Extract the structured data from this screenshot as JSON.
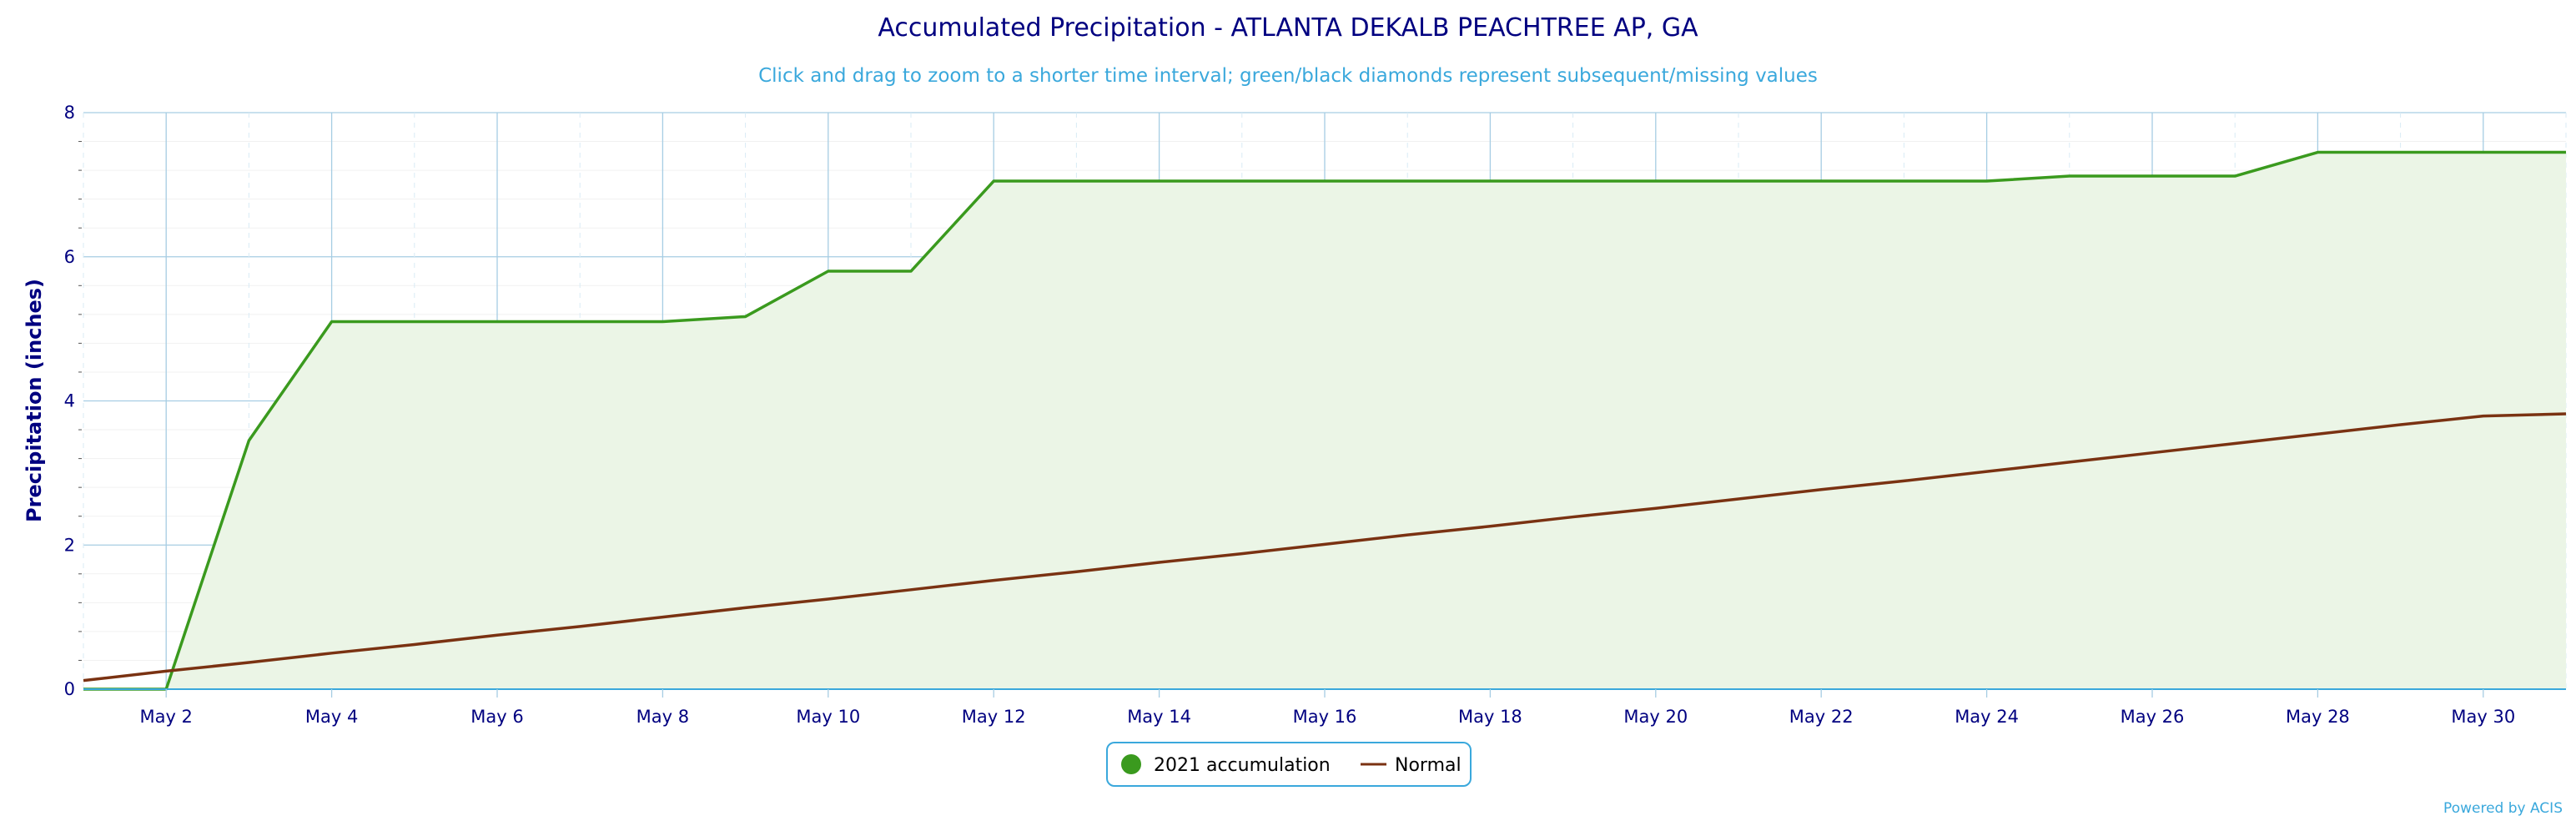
{
  "chart_data": {
    "type": "line",
    "title": "Accumulated Precipitation - ATLANTA DEKALB PEACHTREE AP, GA",
    "subtitle": "Click and drag to zoom to a shorter time interval; green/black diamonds represent subsequent/missing values",
    "ylabel": "Precipitation (inches)",
    "xlabel": "",
    "ylim": [
      0,
      8
    ],
    "xlim": [
      1,
      31
    ],
    "y_ticks": [
      0,
      2,
      4,
      6,
      8
    ],
    "x_ticks": [
      {
        "day": 2,
        "label": "May 2"
      },
      {
        "day": 4,
        "label": "May 4"
      },
      {
        "day": 6,
        "label": "May 6"
      },
      {
        "day": 8,
        "label": "May 8"
      },
      {
        "day": 10,
        "label": "May 10"
      },
      {
        "day": 12,
        "label": "May 12"
      },
      {
        "day": 14,
        "label": "May 14"
      },
      {
        "day": 16,
        "label": "May 16"
      },
      {
        "day": 18,
        "label": "May 18"
      },
      {
        "day": 20,
        "label": "May 20"
      },
      {
        "day": 22,
        "label": "May 22"
      },
      {
        "day": 24,
        "label": "May 24"
      },
      {
        "day": 26,
        "label": "May 26"
      },
      {
        "day": 28,
        "label": "May 28"
      },
      {
        "day": 30,
        "label": "May 30"
      }
    ],
    "grid": true,
    "legend_position": "bottom-center",
    "series": [
      {
        "name": "2021 accumulation",
        "color": "#3a9a1e",
        "fill": "#ebf5e6",
        "x": [
          1,
          2,
          3,
          4,
          5,
          6,
          7,
          8,
          9,
          10,
          11,
          12,
          13,
          14,
          15,
          16,
          17,
          18,
          19,
          20,
          21,
          22,
          23,
          24,
          25,
          26,
          27,
          28,
          29,
          30,
          31
        ],
        "values": [
          0.0,
          0.0,
          3.45,
          5.1,
          5.1,
          5.1,
          5.1,
          5.1,
          5.17,
          5.8,
          5.8,
          7.05,
          7.05,
          7.05,
          7.05,
          7.05,
          7.05,
          7.05,
          7.05,
          7.05,
          7.05,
          7.05,
          7.05,
          7.05,
          7.12,
          7.12,
          7.12,
          7.45,
          7.45,
          7.45,
          7.45
        ]
      },
      {
        "name": "Normal",
        "color": "#7a3212",
        "x": [
          1,
          2,
          3,
          4,
          5,
          6,
          7,
          8,
          9,
          10,
          11,
          12,
          13,
          14,
          15,
          16,
          17,
          18,
          19,
          20,
          21,
          22,
          23,
          24,
          25,
          26,
          27,
          28,
          29,
          30,
          31
        ],
        "values": [
          0.12,
          0.25,
          0.37,
          0.5,
          0.62,
          0.75,
          0.87,
          1.0,
          1.13,
          1.25,
          1.38,
          1.51,
          1.63,
          1.76,
          1.88,
          2.01,
          2.14,
          2.26,
          2.39,
          2.51,
          2.64,
          2.77,
          2.89,
          3.02,
          3.15,
          3.28,
          3.41,
          3.54,
          3.67,
          3.79,
          3.82
        ]
      }
    ],
    "credit": "Powered by ACIS"
  }
}
